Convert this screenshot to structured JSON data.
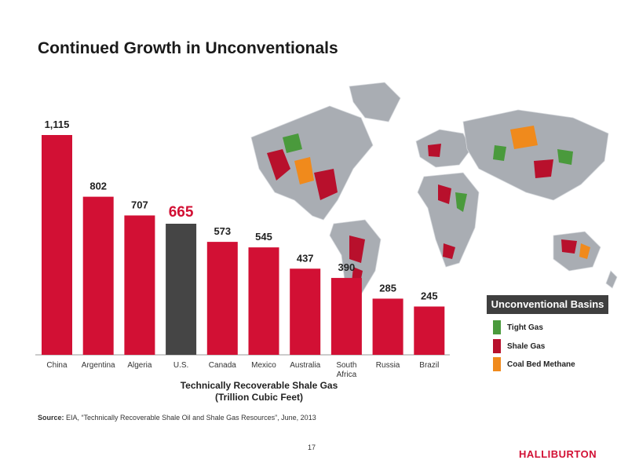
{
  "slide": {
    "title": "Continued Growth in Unconventionals",
    "source_label": "Source:",
    "source_text": "EIA, “Technically Recoverable Shale Oil and Shale Gas Resources”, June, 2013",
    "page_number": "17",
    "brand": "HALLIBURTON"
  },
  "legend": {
    "title": "Unconventional Basins",
    "items": [
      {
        "label": "Tight Gas",
        "color": "#4a9a3c"
      },
      {
        "label": "Shale Gas",
        "color": "#b8102c"
      },
      {
        "label": "Coal Bed Methane",
        "color": "#f08a1c"
      }
    ]
  },
  "chart_data": {
    "type": "bar",
    "title": "",
    "xlabel_lines": [
      "Technically Recoverable Shale Gas",
      "(Trillion Cubic Feet)"
    ],
    "ylabel": "",
    "categories": [
      "China",
      "Argentina",
      "Algeria",
      "U.S.",
      "Canada",
      "Mexico",
      "Australia",
      "South Africa",
      "Russia",
      "Brazil"
    ],
    "values": [
      1115,
      802,
      707,
      665,
      573,
      545,
      437,
      390,
      285,
      245
    ],
    "value_labels": [
      "1,115",
      "802",
      "707",
      "665",
      "573",
      "545",
      "437",
      "390",
      "285",
      "245"
    ],
    "highlight_index": 3,
    "colors": {
      "bar": "#d21034",
      "highlight": "#454545"
    },
    "ylim": [
      0,
      1115
    ],
    "grid": false,
    "legend_position": "right"
  }
}
